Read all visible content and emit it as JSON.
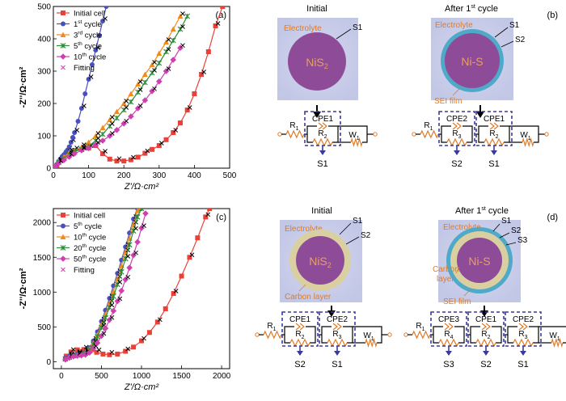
{
  "chart_data": [
    {
      "type": "line",
      "panel": "(a)",
      "xlabel": "Z'/Ω·cm²",
      "ylabel": "-Z''/Ω·cm²",
      "xlim": [
        0,
        500
      ],
      "ylim": [
        0,
        500
      ],
      "xticks": [
        0,
        100,
        200,
        300,
        400,
        500
      ],
      "yticks": [
        0,
        100,
        200,
        300,
        400,
        500
      ],
      "legend_position": "top-left",
      "fitting_label": "Fitting",
      "series": [
        {
          "name": "Initial cell",
          "color": "#e8413a",
          "marker": "square",
          "x": [
            10,
            20,
            40,
            60,
            80,
            100,
            120,
            140,
            160,
            180,
            200,
            220,
            240,
            260,
            280,
            300,
            320,
            340,
            360,
            380,
            400,
            420,
            440,
            460,
            480
          ],
          "y": [
            8,
            25,
            45,
            55,
            58,
            62,
            70,
            45,
            28,
            22,
            22,
            26,
            34,
            46,
            58,
            70,
            88,
            110,
            140,
            180,
            230,
            290,
            360,
            440,
            500
          ]
        },
        {
          "name": "1st cycle",
          "color": "#4a4fbf",
          "marker": "circle",
          "x": [
            5,
            10,
            15,
            20,
            25,
            30,
            35,
            40,
            45,
            50,
            55,
            60,
            70,
            80,
            90,
            100,
            110,
            120,
            130,
            140,
            150
          ],
          "y": [
            5,
            12,
            20,
            28,
            36,
            42,
            48,
            56,
            66,
            80,
            95,
            110,
            145,
            185,
            230,
            275,
            320,
            365,
            410,
            455,
            500
          ]
        },
        {
          "name": "3rd cycle",
          "color": "#f08a1c",
          "marker": "triangle",
          "x": [
            5,
            15,
            30,
            45,
            60,
            80,
            100,
            120,
            140,
            160,
            180,
            200,
            220,
            240,
            260,
            280,
            300,
            320,
            340,
            360
          ],
          "y": [
            5,
            20,
            35,
            48,
            55,
            65,
            80,
            100,
            125,
            150,
            175,
            200,
            230,
            260,
            290,
            320,
            355,
            390,
            430,
            470
          ]
        },
        {
          "name": "5th cycle",
          "color": "#2e8b3a",
          "marker": "star",
          "x": [
            5,
            15,
            30,
            45,
            60,
            80,
            100,
            120,
            140,
            160,
            180,
            200,
            220,
            240,
            260,
            280,
            300,
            320,
            340,
            360,
            380
          ],
          "y": [
            5,
            18,
            30,
            42,
            52,
            58,
            68,
            85,
            105,
            130,
            155,
            180,
            205,
            235,
            265,
            295,
            325,
            360,
            395,
            430,
            470
          ]
        },
        {
          "name": "10th cycle",
          "color": "#d03fb0",
          "marker": "diamond",
          "x": [
            5,
            15,
            30,
            45,
            60,
            80,
            100,
            120,
            140,
            160,
            180,
            200,
            220,
            240,
            260,
            280,
            300,
            320,
            340,
            360
          ],
          "y": [
            5,
            15,
            25,
            35,
            45,
            55,
            62,
            72,
            85,
            100,
            118,
            138,
            160,
            185,
            210,
            238,
            268,
            300,
            335,
            372
          ]
        }
      ]
    },
    {
      "type": "line",
      "panel": "(c)",
      "xlabel": "Z'/Ω·cm²",
      "ylabel": "-Z''/Ω·cm²",
      "xlim": [
        -100,
        2100
      ],
      "ylim": [
        -100,
        2200
      ],
      "xticks": [
        0,
        500,
        1000,
        1500,
        2000
      ],
      "yticks": [
        0,
        500,
        1000,
        1500,
        2000
      ],
      "legend_position": "top-left",
      "fitting_label": "Fitting",
      "series": [
        {
          "name": "Initial cell",
          "color": "#e8413a",
          "marker": "square",
          "x": [
            60,
            120,
            200,
            280,
            360,
            440,
            520,
            600,
            700,
            800,
            900,
            1000,
            1100,
            1200,
            1300,
            1400,
            1500,
            1600,
            1700,
            1800,
            1850
          ],
          "y": [
            80,
            140,
            170,
            175,
            160,
            135,
            110,
            100,
            110,
            150,
            210,
            300,
            420,
            570,
            760,
            980,
            1230,
            1500,
            1780,
            2080,
            2200
          ]
        },
        {
          "name": "5th cycle",
          "color": "#4a4fbf",
          "marker": "circle",
          "x": [
            50,
            100,
            150,
            200,
            250,
            300,
            350,
            400,
            450,
            500,
            550,
            600,
            650,
            700,
            750,
            800,
            850,
            900,
            950
          ],
          "y": [
            50,
            80,
            100,
            110,
            120,
            140,
            200,
            300,
            430,
            580,
            740,
            910,
            1090,
            1270,
            1460,
            1650,
            1850,
            2050,
            2200
          ]
        },
        {
          "name": "10th cycle",
          "color": "#f08a1c",
          "marker": "triangle",
          "x": [
            50,
            100,
            150,
            200,
            250,
            300,
            350,
            400,
            450,
            500,
            550,
            600,
            650,
            700,
            750,
            800,
            850,
            900,
            950,
            980
          ],
          "y": [
            40,
            70,
            90,
            100,
            110,
            130,
            180,
            270,
            390,
            530,
            680,
            840,
            1010,
            1190,
            1380,
            1570,
            1770,
            1970,
            2170,
            2200
          ]
        },
        {
          "name": "20th cycle",
          "color": "#2e8b3a",
          "marker": "star",
          "x": [
            50,
            100,
            150,
            200,
            250,
            300,
            350,
            400,
            450,
            500,
            550,
            600,
            650,
            700,
            750,
            800,
            850,
            900,
            950,
            1000
          ],
          "y": [
            40,
            65,
            85,
            95,
            105,
            120,
            165,
            250,
            360,
            490,
            630,
            780,
            940,
            1110,
            1290,
            1480,
            1680,
            1880,
            2080,
            2200
          ]
        },
        {
          "name": "50th cycle",
          "color": "#d03fb0",
          "marker": "diamond",
          "x": [
            50,
            100,
            150,
            200,
            250,
            300,
            350,
            400,
            450,
            500,
            550,
            600,
            650,
            700,
            750,
            800,
            850,
            900,
            950,
            1000,
            1050
          ],
          "y": [
            30,
            55,
            75,
            85,
            90,
            100,
            130,
            190,
            270,
            370,
            480,
            600,
            730,
            870,
            1020,
            1180,
            1350,
            1530,
            1720,
            1920,
            2130
          ]
        }
      ]
    }
  ],
  "diagrams": {
    "b": {
      "panel_label": "(b)",
      "initial": {
        "title": "Initial",
        "particle": "NiS",
        "particle_sub": "2",
        "electrolyte": "Electrolyte",
        "s1": "S1",
        "circuit": {
          "r1": "R1",
          "cpe_a": "CPE1",
          "r_a": "R2",
          "w": "W1",
          "s_a": "S1"
        }
      },
      "after": {
        "title_pre": "After 1",
        "title_sup": "st",
        "title_post": " cycle",
        "particle": "Ni-S",
        "electrolyte": "Electrolyte",
        "s1": "S1",
        "s2": "S2",
        "sei": "SEI film",
        "circuit": {
          "r1": "R1",
          "cpe_a": "CPE2",
          "r_a": "R3",
          "cpe_b": "CPE1",
          "r_b": "R2",
          "w": "W1",
          "s_a": "S2",
          "s_b": "S1"
        }
      }
    },
    "d": {
      "panel_label": "(d)",
      "initial": {
        "title": "Initial",
        "particle": "NiS",
        "particle_sub": "2",
        "electrolyte": "Electrolyte",
        "s1": "S1",
        "s2": "S2",
        "carbon": "Carbon layer",
        "circuit": {
          "r1": "R1",
          "cpe_a": "CPE1",
          "r_a": "R2",
          "cpe_b": "CPE2",
          "r_b": "R3",
          "w": "W1",
          "s_a": "S2",
          "s_b": "S1"
        }
      },
      "after": {
        "title_pre": "After 1",
        "title_sup": "st",
        "title_post": " cycle",
        "particle": "Ni-S",
        "electrolyte": "Electrolyte",
        "s1": "S1",
        "s2": "S2",
        "s3": "S3",
        "carbon_1": "Carbon",
        "carbon_2": "layer",
        "sei": "SEI film",
        "circuit": {
          "r1": "R1",
          "cpe_a": "CPE3",
          "r_a": "R4",
          "cpe_b": "CPE1",
          "r_b": "R2",
          "cpe_c": "CPE2",
          "r_c": "R3",
          "w": "W1",
          "s_a": "S3",
          "s_b": "S2",
          "s_c": "S1"
        }
      }
    }
  },
  "colors": {
    "electrolyte_bg": "#c9cde8",
    "particle": "#8e4b97",
    "sei": "#4fa9c9",
    "carbon": "#d9cfa0",
    "circuit_orange": "#e07a26",
    "circuit_box": "#3a3a9a",
    "label_orange": "#e07a26"
  }
}
